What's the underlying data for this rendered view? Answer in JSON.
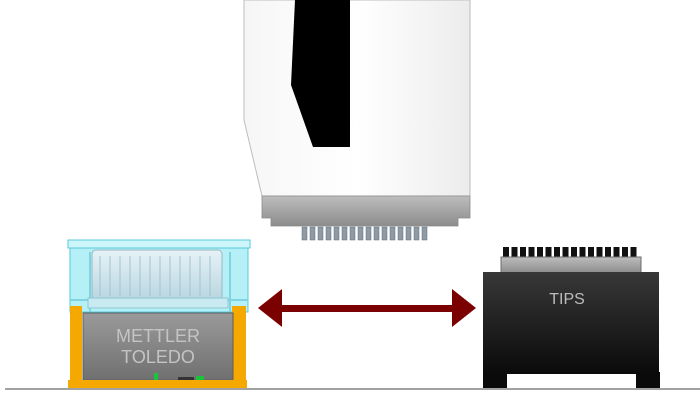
{
  "balance": {
    "brand_line1": "METTLER",
    "brand_line2": "TOLEDO"
  },
  "tip_box": {
    "label": "TIPS"
  },
  "arrow": {
    "type": "double-headed",
    "color": "#7b0000"
  },
  "pipette_head": {
    "channel_count": 16
  },
  "colors": {
    "enclosure_cyan": "#a6eef5",
    "base_orange": "#f5a800",
    "balance_gray": "#7f7f7f",
    "tip_box_black": "#1a1a1a"
  }
}
